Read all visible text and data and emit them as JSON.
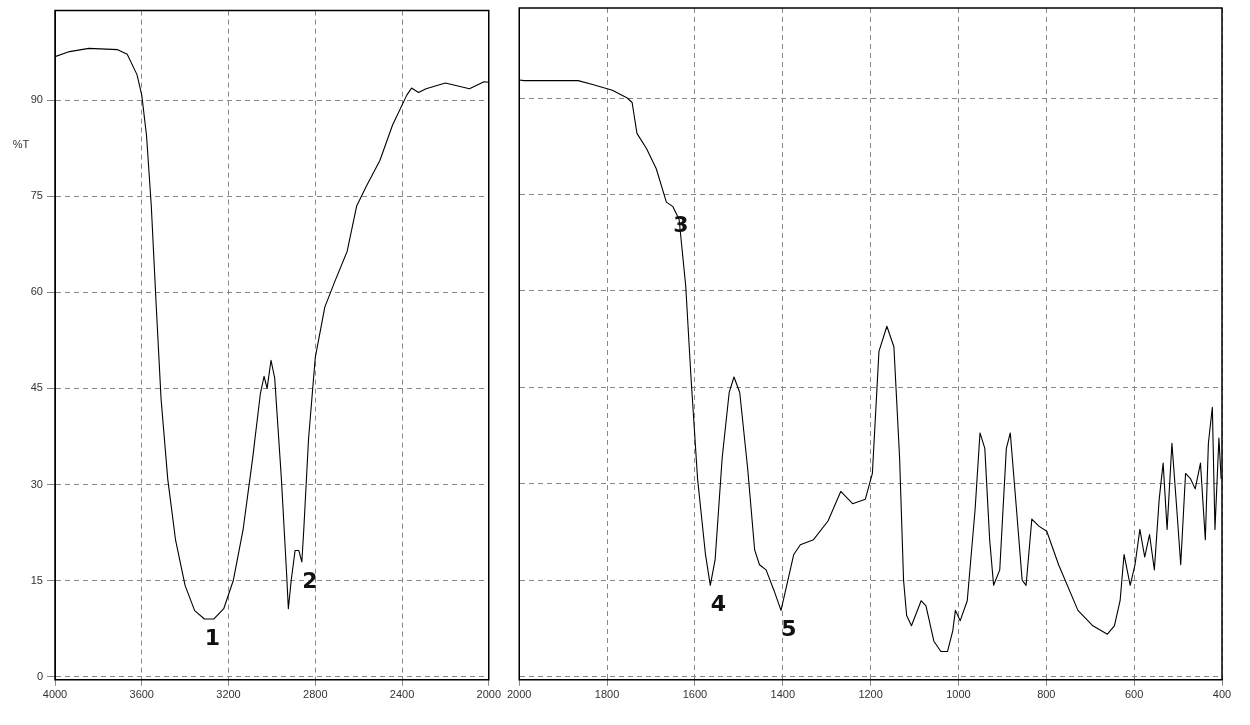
{
  "chart_data": [
    {
      "type": "line",
      "ylabel": "%T",
      "series": [
        {
          "color": "#000000",
          "x": [
            4000,
            3933,
            3844,
            3711,
            3667,
            3622,
            3600,
            3578,
            3556,
            3533,
            3511,
            3480,
            3444,
            3400,
            3356,
            3311,
            3267,
            3222,
            3178,
            3133,
            3089,
            3053,
            3036,
            3022,
            3004,
            2987,
            2956,
            2933,
            2924,
            2911,
            2893,
            2876,
            2862,
            2853,
            2831,
            2800,
            2756,
            2711,
            2653,
            2609,
            2564,
            2502,
            2444,
            2378,
            2356,
            2324,
            2289,
            2200,
            2089,
            2022,
            2000
          ],
          "values": [
            96.8,
            97.6,
            98.1,
            97.9,
            97.2,
            94,
            90.8,
            84.5,
            73.5,
            57.7,
            43.4,
            30.8,
            21.3,
            14.2,
            10.3,
            9,
            9,
            10.6,
            15,
            22.9,
            34,
            44.2,
            46.9,
            45,
            49.4,
            46.6,
            30.8,
            16.6,
            10.6,
            15,
            19.7,
            19.7,
            17.9,
            22.9,
            37.1,
            49.8,
            57.7,
            61.6,
            66.4,
            73.5,
            76.6,
            80.6,
            86.1,
            90.8,
            91.9,
            91.2,
            91.8,
            92.7,
            91.8,
            92.9,
            92.8
          ]
        }
      ],
      "xlim": [
        4000,
        2000
      ],
      "xticks": [
        4000,
        3600,
        3200,
        2800,
        2400,
        2000
      ],
      "ylim": [
        -0.5,
        104
      ],
      "yticks": [
        0,
        15,
        30,
        45,
        60,
        75,
        90
      ],
      "grid": true,
      "legend": false,
      "marker": "none",
      "line_style": "solid",
      "annotations": [
        {
          "text": "1",
          "x": 3311,
          "y": 9
        },
        {
          "text": "2",
          "x": 2862,
          "y": 17.9
        }
      ]
    },
    {
      "type": "line",
      "series": [
        {
          "color": "#000000",
          "x": [
            2000,
            1989,
            1866,
            1833,
            1788,
            1754,
            1743,
            1732,
            1710,
            1688,
            1665,
            1650,
            1636,
            1621,
            1609,
            1594,
            1576,
            1565,
            1554,
            1538,
            1522,
            1511,
            1498,
            1480,
            1464,
            1453,
            1438,
            1420,
            1404,
            1391,
            1375,
            1360,
            1330,
            1297,
            1268,
            1241,
            1212,
            1196,
            1181,
            1163,
            1147,
            1134,
            1125,
            1118,
            1107,
            1085,
            1074,
            1056,
            1040,
            1025,
            1013,
            1007,
            996,
            980,
            962,
            951,
            940,
            929,
            920,
            906,
            891,
            882,
            868,
            855,
            846,
            833,
            817,
            799,
            772,
            728,
            694,
            661,
            645,
            632,
            623,
            609,
            598,
            587,
            576,
            565,
            554,
            543,
            534,
            525,
            514,
            503,
            494,
            483,
            472,
            461,
            449,
            438,
            431,
            422,
            416,
            407,
            402
          ],
          "values": [
            92.8,
            92.7,
            92.7,
            92.1,
            91.2,
            90,
            89.3,
            84.5,
            82.1,
            79,
            73.8,
            73.1,
            71.1,
            60.8,
            46.6,
            30.8,
            19,
            14.2,
            18.2,
            34,
            44.2,
            46.6,
            44.2,
            32.4,
            19.7,
            17.4,
            16.6,
            13.4,
            10.3,
            14.2,
            19,
            20.5,
            21.3,
            24.2,
            28.8,
            26.9,
            27.6,
            31.6,
            50.6,
            54.5,
            51.3,
            34,
            15,
            9.5,
            7.9,
            11.8,
            11,
            5.5,
            3.9,
            3.9,
            7.1,
            10.3,
            8.7,
            11.8,
            26.1,
            37.9,
            35.5,
            21.3,
            14.2,
            16.6,
            35.5,
            37.9,
            26.1,
            15,
            14.2,
            24.5,
            23.4,
            22.6,
            17.4,
            10.3,
            7.9,
            6.6,
            7.9,
            11.8,
            19,
            14.2,
            17.4,
            22.9,
            18.6,
            22.1,
            16.6,
            27.6,
            33.2,
            22.9,
            36.3,
            26.1,
            17.4,
            31.6,
            30.8,
            29.2,
            33.2,
            21.3,
            36.3,
            41.9,
            22.9,
            37.1,
            30.8
          ]
        }
      ],
      "xlim": [
        2000,
        400
      ],
      "xticks": [
        2000,
        1800,
        1600,
        1400,
        1200,
        1000,
        800,
        600,
        400
      ],
      "ylim": [
        -0.5,
        104
      ],
      "yticks": [
        0,
        15,
        30,
        45,
        60,
        75,
        90
      ],
      "tick_labels": "x",
      "grid": true,
      "legend": false,
      "marker": "none",
      "line_style": "solid",
      "annotations": [
        {
          "text": "3",
          "x": 1650,
          "y": 73.1
        },
        {
          "text": "4",
          "x": 1565,
          "y": 14.2
        },
        {
          "text": "5",
          "x": 1404,
          "y": 10.3
        }
      ]
    }
  ]
}
